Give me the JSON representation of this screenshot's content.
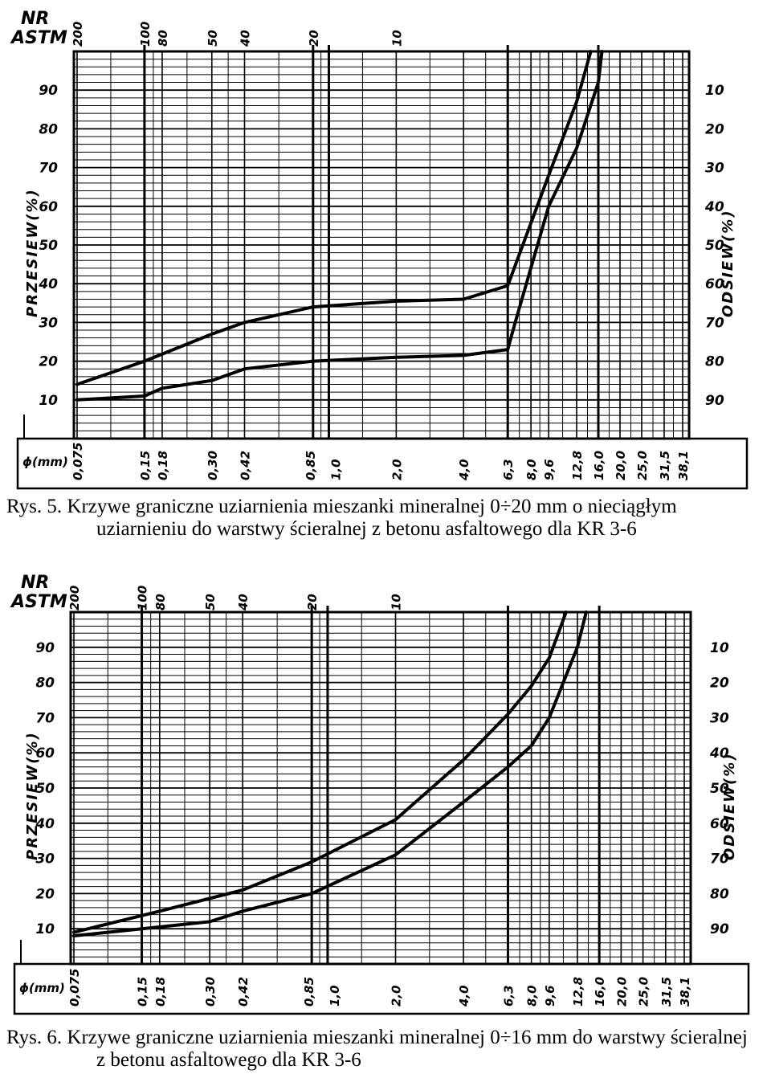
{
  "labels": {
    "nr": "NR",
    "astm": "ASTM",
    "mm": "ϕ(mm)",
    "przesiew": "PRZESIEW(%)",
    "odsiew": "ODSIEW(%)"
  },
  "chart_data": [
    {
      "type": "line",
      "x_scale": "log",
      "xlabel": "ϕ(mm)",
      "ylabel": "PRZESIEW(%)",
      "y2label": "ODSIEW(%)",
      "ylim": [
        0,
        100
      ],
      "grid": true,
      "astm_ticks": [
        {
          "label": "200",
          "x": 0.075
        },
        {
          "label": "100",
          "x": 0.15
        },
        {
          "label": "80",
          "x": 0.18
        },
        {
          "label": "50",
          "x": 0.3
        },
        {
          "label": "40",
          "x": 0.42
        },
        {
          "label": "20",
          "x": 0.85
        },
        {
          "label": "10",
          "x": 2.0
        }
      ],
      "sieve_ticks": [
        "0,075",
        "0,15",
        "0,18",
        "0,30",
        "0,42",
        "0,85",
        "1,0",
        "2,0",
        "4,0",
        "6,3",
        "8,0",
        "9,6",
        "12,8",
        "16,0",
        "20,0",
        "25,0",
        "31,5",
        "38,1"
      ],
      "left_ticks": [
        "10",
        "20",
        "30",
        "40",
        "50",
        "60",
        "70",
        "80",
        "90"
      ],
      "right_ticks": [
        "90",
        "80",
        "70",
        "60",
        "50",
        "40",
        "30",
        "20",
        "10"
      ],
      "series": [
        {
          "x": [
            0.075,
            0.15,
            0.3,
            0.42,
            0.85,
            2.0,
            4.0,
            6.3,
            9.6,
            12.8,
            14.8
          ],
          "y": [
            14,
            20,
            27,
            30,
            34,
            35.5,
            36,
            39.5,
            68,
            87,
            100
          ]
        },
        {
          "x": [
            0.075,
            0.15,
            0.18,
            0.3,
            0.42,
            0.85,
            2.0,
            4.0,
            6.3,
            6.8,
            9.6,
            12.8,
            16.0,
            16.6
          ],
          "y": [
            10,
            11,
            13,
            15,
            18,
            20,
            21,
            21.5,
            23,
            30,
            60,
            75,
            92,
            100
          ]
        }
      ],
      "caption": "Rys. 5. Krzywe graniczne uziarnienia mieszanki mineralnej 0÷20 mm o nieciągłym uziarnieniu do warstwy ścieralnej z betonu asfaltowego dla KR 3-6"
    },
    {
      "type": "line",
      "x_scale": "log",
      "xlabel": "ϕ(mm)",
      "ylabel": "PRZESIEW(%)",
      "y2label": "ODSIEW(%)",
      "ylim": [
        0,
        100
      ],
      "grid": true,
      "astm_ticks": [
        {
          "label": "200",
          "x": 0.075
        },
        {
          "label": "100",
          "x": 0.15
        },
        {
          "label": "80",
          "x": 0.18
        },
        {
          "label": "50",
          "x": 0.3
        },
        {
          "label": "40",
          "x": 0.42
        },
        {
          "label": "20",
          "x": 0.85
        },
        {
          "label": "10",
          "x": 2.0
        }
      ],
      "sieve_ticks": [
        "0,075",
        "0,15",
        "0,18",
        "0,30",
        "0,42",
        "0,85",
        "1,0",
        "2,0",
        "4,0",
        "6,3",
        "8,0",
        "9,6",
        "12,8",
        "16,0",
        "20,0",
        "25,0",
        "31,5",
        "38,1"
      ],
      "left_ticks": [
        "10",
        "20",
        "30",
        "40",
        "50",
        "60",
        "70",
        "80",
        "90"
      ],
      "right_ticks": [
        "90",
        "80",
        "70",
        "60",
        "50",
        "40",
        "30",
        "20",
        "10"
      ],
      "series": [
        {
          "x": [
            0.075,
            0.18,
            0.42,
            0.85,
            2.0,
            4.0,
            6.3,
            8.0,
            9.6,
            11.4
          ],
          "y": [
            9,
            15,
            21,
            29,
            41,
            58,
            71,
            79,
            87,
            100
          ]
        },
        {
          "x": [
            0.075,
            0.15,
            0.3,
            0.42,
            0.85,
            2.0,
            4.0,
            6.3,
            8.0,
            9.6,
            12.8,
            14.0
          ],
          "y": [
            8,
            10,
            12,
            15,
            20,
            31,
            46,
            56,
            62,
            70,
            90,
            100
          ]
        }
      ],
      "caption": "Rys. 6. Krzywe graniczne uziarnienia mieszanki mineralnej 0÷16 mm do warstwy ścieralnej z betonu asfaltowego dla KR 3-6"
    }
  ],
  "captions": {
    "c1_line1": "Rys.  5.  Krzywe  graniczne  uziarnienia  mieszanki  mineralnej  0÷20  mm  o  nieciągłym",
    "c1_line2": "uziarnieniu do warstwy ścieralnej z betonu asfaltowego dla KR 3-6",
    "c2_line1": "Rys. 6. Krzywe graniczne uziarnienia mieszanki mineralnej 0÷16 mm do warstwy ścieralnej",
    "c2_line2": "z betonu asfaltowego dla KR 3-6"
  }
}
